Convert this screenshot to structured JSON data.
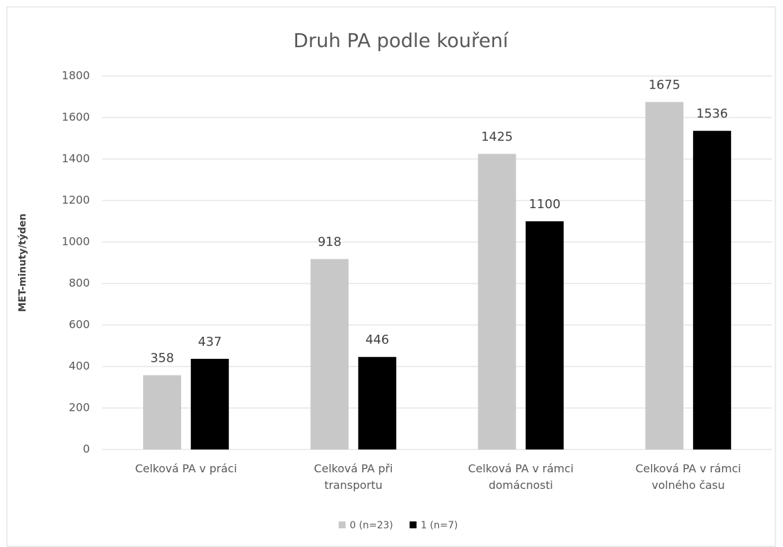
{
  "chart_data": {
    "type": "bar",
    "title": "Druh PA podle kouření",
    "y_label": "MET-minuty/týden",
    "categories": [
      "Celková PA v práci",
      "Celková PA při transportu",
      "Celková PA v rámci domácnosti",
      "Celková PA v rámci volného času"
    ],
    "series": [
      {
        "name": "0 (n=23)",
        "color": "#c8c8c8",
        "values": [
          358,
          918,
          1425,
          1675
        ]
      },
      {
        "name": "1 (n=7)",
        "color": "#000000",
        "values": [
          437,
          446,
          1100,
          1536
        ]
      }
    ],
    "ylim": [
      0,
      1800
    ],
    "yticks": [
      0,
      200,
      400,
      600,
      800,
      1000,
      1200,
      1400,
      1600,
      1800
    ],
    "grid": true,
    "legend": "bottom"
  }
}
